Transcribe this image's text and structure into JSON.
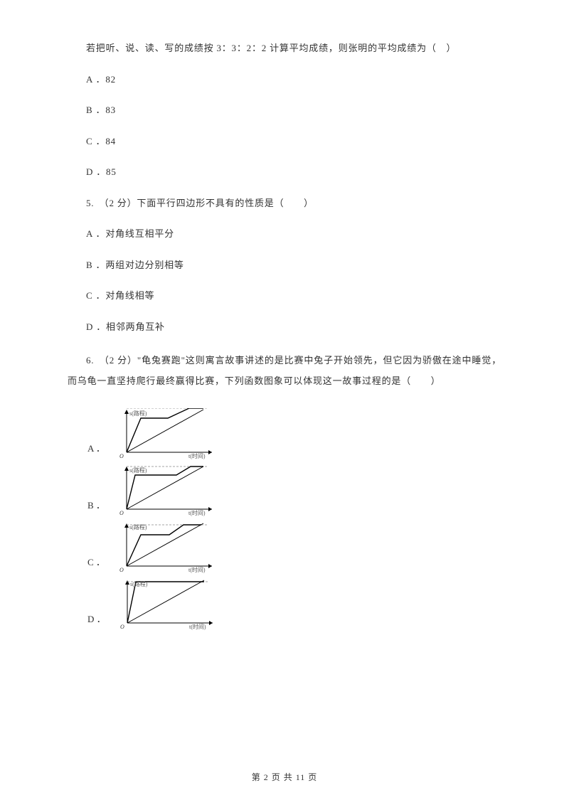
{
  "q4": {
    "stem": "若把听、说、读、写的成绩按 3：3：2：2 计算平均成绩，则张明的平均成绩为（　）",
    "options": {
      "a": "A ．82",
      "b": "B ．83",
      "c": "C ．84",
      "d": "D ．85"
    }
  },
  "q5": {
    "stem": "5.　（2 分）下面平行四边形不具有的性质是（　　）",
    "options": {
      "a": "A ．对角线互相平分",
      "b": "B ．两组对边分别相等",
      "c": "C ．对角线相等",
      "d": "D ．相邻两角互补"
    }
  },
  "q6": {
    "stem": "6.　（2 分）\"龟兔赛跑\"这则寓言故事讲述的是比赛中兔子开始领先，但它因为骄傲在途中睡觉，而乌龟一直坚持爬行最终赢得比赛，下列函数图象可以体现这一故事过程的是（　　）",
    "labels": {
      "a": "A ．",
      "b": "B ．",
      "c": "C ．",
      "d": "D ．"
    }
  },
  "graph": {
    "width": 145,
    "height": 72,
    "axis_color": "#000000",
    "y_label": "s(路程)",
    "x_label": "t(时间)",
    "origin": "O",
    "label_fontsize": 8,
    "options": {
      "a": [
        [
          0,
          0
        ],
        [
          20,
          48
        ],
        [
          58,
          48
        ],
        [
          88,
          62
        ],
        [
          108,
          62
        ]
      ],
      "b": [
        [
          0,
          0
        ],
        [
          12,
          48
        ],
        [
          70,
          48
        ],
        [
          90,
          60
        ],
        [
          108,
          60
        ]
      ],
      "c": [
        [
          0,
          0
        ],
        [
          20,
          44
        ],
        [
          60,
          44
        ],
        [
          80,
          58
        ],
        [
          105,
          58
        ]
      ],
      "d": [
        [
          0,
          0
        ],
        [
          12,
          58
        ],
        [
          40,
          58
        ],
        [
          60,
          58
        ],
        [
          108,
          58
        ]
      ]
    },
    "tortoise": [
      [
        0,
        0
      ],
      [
        108,
        60
      ]
    ],
    "dash": "#888888"
  },
  "footer": "第 2 页 共 11 页"
}
